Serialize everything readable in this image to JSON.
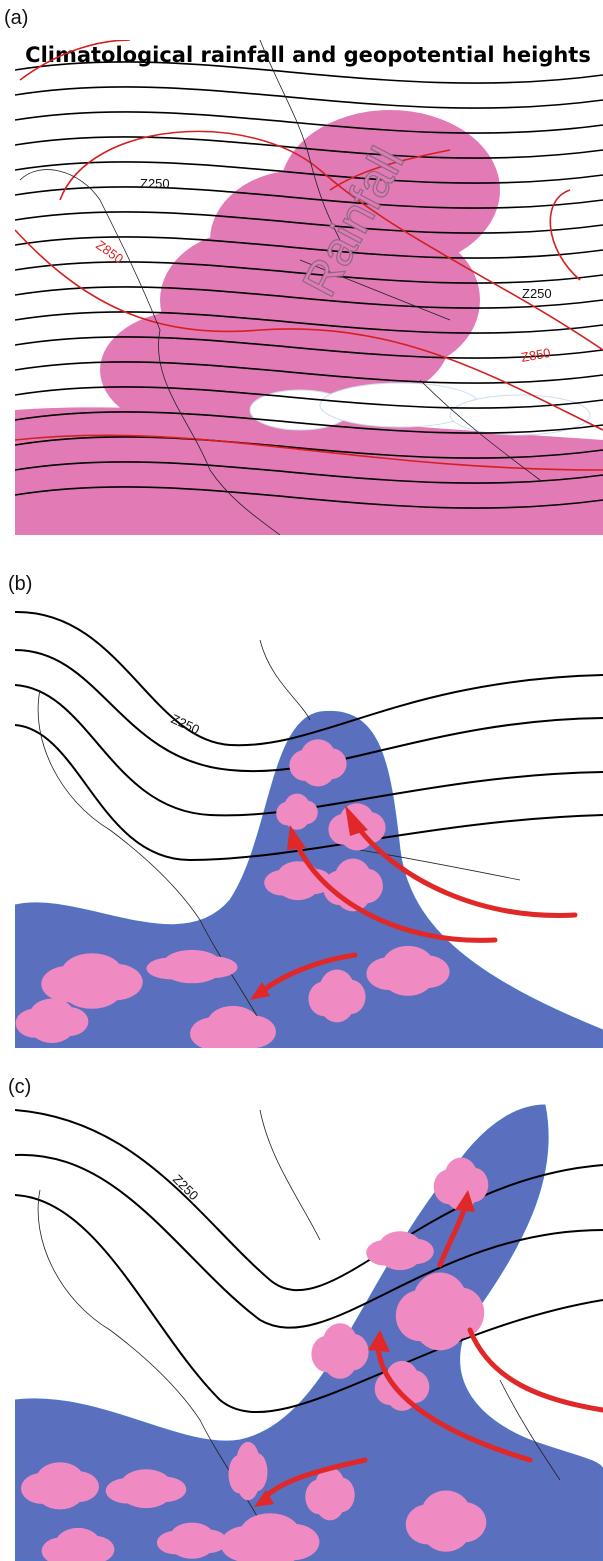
{
  "panels": [
    {
      "label": "(a)",
      "title": "Climatological rainfall and geopotential heights",
      "annotations": [
        "Z250",
        "Z850",
        "Rainfall",
        "Z250",
        "Z850"
      ]
    },
    {
      "label": "(b)",
      "annotations": [
        "Z250"
      ]
    },
    {
      "label": "(c)",
      "annotations": [
        "Z250"
      ]
    }
  ]
}
